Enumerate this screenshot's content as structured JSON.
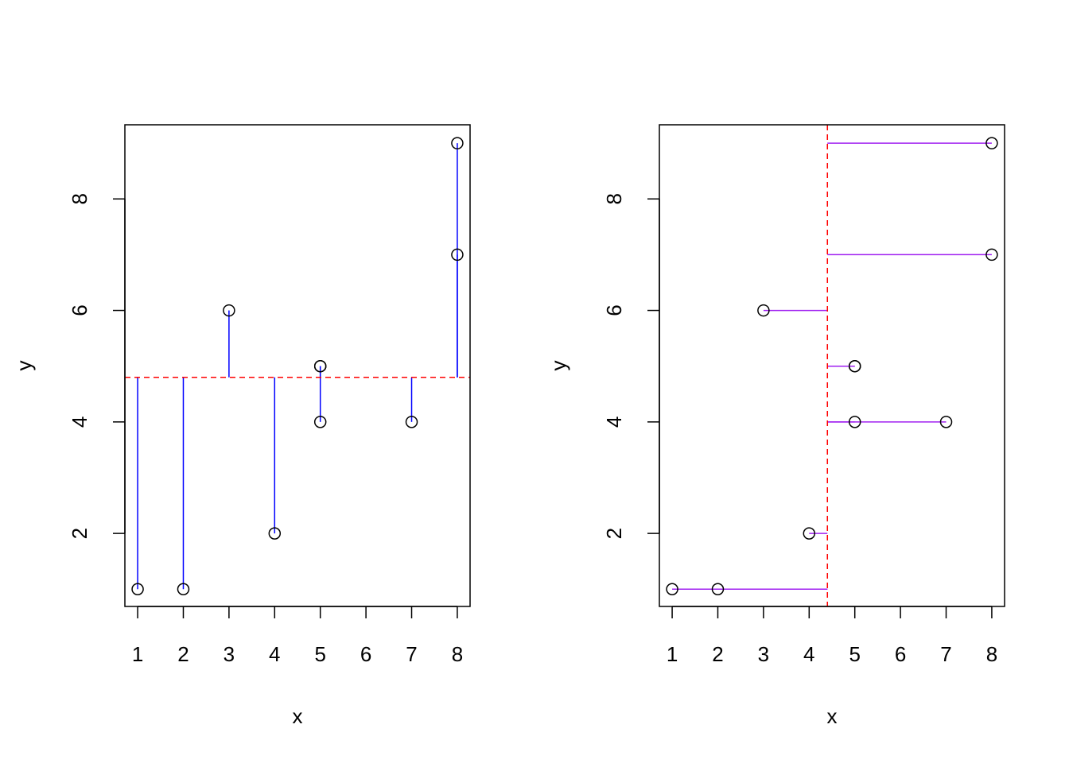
{
  "chart_data": [
    {
      "type": "scatter",
      "x": [
        1,
        2,
        3,
        4,
        5,
        5,
        5,
        7,
        8,
        8
      ],
      "values": [
        1,
        1,
        6,
        2,
        5,
        5,
        4,
        4,
        7,
        9
      ],
      "xlabel": "x",
      "ylabel": "y",
      "xlim": [
        0.72,
        8.28
      ],
      "ylim": [
        0.69,
        9.33
      ],
      "xticks": [
        1,
        2,
        3,
        4,
        5,
        6,
        7,
        8
      ],
      "yticks": [
        2,
        4,
        6,
        8
      ],
      "hline": 4.8,
      "ref_color": "#ff0000",
      "segment_color": "#0000ff"
    },
    {
      "type": "scatter",
      "x": [
        1,
        2,
        3,
        4,
        5,
        5,
        5,
        7,
        8,
        8
      ],
      "values": [
        1,
        1,
        6,
        2,
        5,
        5,
        4,
        4,
        7,
        9
      ],
      "xlabel": "x",
      "ylabel": "y",
      "xlim": [
        0.72,
        8.28
      ],
      "ylim": [
        0.69,
        9.33
      ],
      "xticks": [
        1,
        2,
        3,
        4,
        5,
        6,
        7,
        8
      ],
      "yticks": [
        2,
        4,
        6,
        8
      ],
      "vline": 4.4,
      "ref_color": "#ff0000",
      "segment_color": "#a020f0"
    }
  ]
}
